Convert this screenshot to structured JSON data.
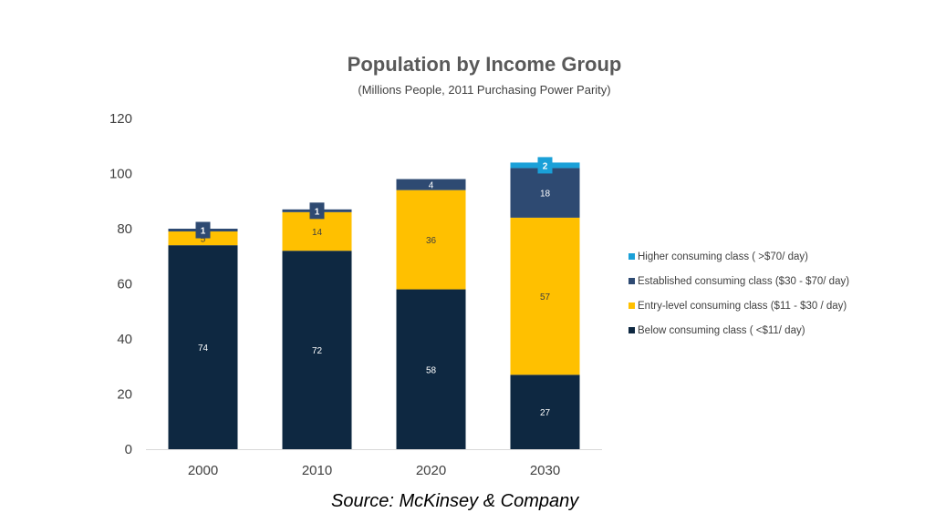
{
  "chart_data": {
    "type": "bar",
    "stacked": true,
    "title": "Population by Income Group",
    "subtitle": "(Millions People, 2011 Purchasing Power Parity)",
    "categories": [
      "2000",
      "2010",
      "2020",
      "2030"
    ],
    "ylim": [
      0,
      120
    ],
    "yticks": [
      0,
      20,
      40,
      60,
      80,
      100,
      120
    ],
    "grid": false,
    "legend_position": "right",
    "series": [
      {
        "name": "Below consuming class ( <$11/ day)",
        "values": [
          74,
          72,
          58,
          27
        ],
        "color": "#0e2841"
      },
      {
        "name": "Entry-level consuming class ($11 - $30 / day)",
        "values": [
          5,
          14,
          36,
          57
        ],
        "color": "#ffc000"
      },
      {
        "name": "Established consuming class ($30 - $70/ day)",
        "values": [
          1,
          1,
          4,
          18
        ],
        "color": "#2e4a72"
      },
      {
        "name": "Higher consuming class ( >$70/ day)",
        "values": [
          0,
          0,
          0,
          2
        ],
        "color": "#1aa0d8"
      }
    ]
  },
  "legend_order": [
    3,
    2,
    1,
    0
  ],
  "source": "Source: McKinsey & Company",
  "colors": {
    "axis_text": "#404040",
    "axis_line": "#d9d9d9",
    "label_light": "#ffffff",
    "label_dark": "#404040"
  }
}
